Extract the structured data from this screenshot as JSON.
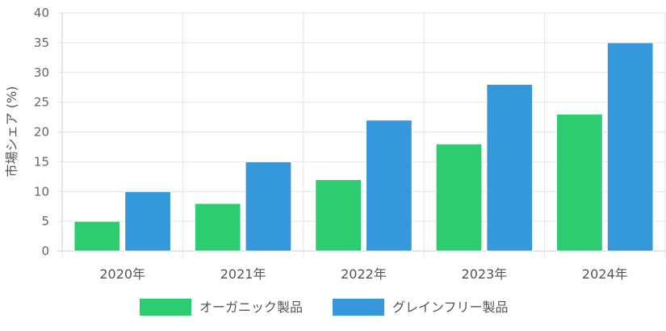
{
  "chart_data": {
    "type": "bar",
    "categories": [
      "2020年",
      "2021年",
      "2022年",
      "2023年",
      "2024年"
    ],
    "series": [
      {
        "name": "オーガニック製品",
        "values": [
          5,
          8,
          12,
          18,
          23
        ],
        "color": "#2ecc71"
      },
      {
        "name": "グレインフリー製品",
        "values": [
          10,
          15,
          22,
          28,
          35
        ],
        "color": "#3498db"
      }
    ],
    "title": "",
    "xlabel": "",
    "ylabel": "市場シェア (%)",
    "ylim": [
      0,
      40
    ],
    "yticks": [
      0,
      5,
      10,
      15,
      20,
      25,
      30,
      35,
      40
    ],
    "grid": true,
    "legend_position": "bottom"
  }
}
